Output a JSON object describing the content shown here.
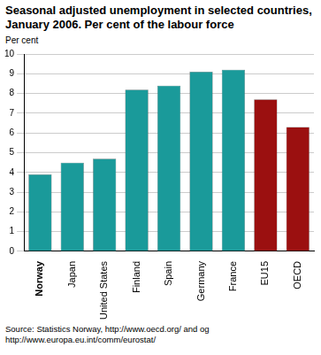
{
  "chart_data": {
    "type": "bar",
    "title": "Seasonal adjusted unemployment in selected countries, January 2006. Per cent of the labour force",
    "ylabel": "Per cent",
    "categories": [
      "Norway",
      "Japan",
      "United States",
      "Finland",
      "Spain",
      "Germany",
      "France",
      "EU15",
      "OECD"
    ],
    "values": [
      3.9,
      4.5,
      4.7,
      8.2,
      8.4,
      9.1,
      9.2,
      7.7,
      6.3
    ],
    "colors": [
      "#1a9a9a",
      "#1a9a9a",
      "#1a9a9a",
      "#1a9a9a",
      "#1a9a9a",
      "#1a9a9a",
      "#1a9a9a",
      "#9b1010",
      "#9b1010"
    ],
    "ylim": [
      0,
      10
    ],
    "yticks": [
      0,
      1,
      2,
      3,
      4,
      5,
      6,
      7,
      8,
      9,
      10
    ],
    "grid": true,
    "source": "Source: Statistics Norway, http://www.oecd.org/ and og http://www.europa.eu.int/comm/eurostat/"
  }
}
